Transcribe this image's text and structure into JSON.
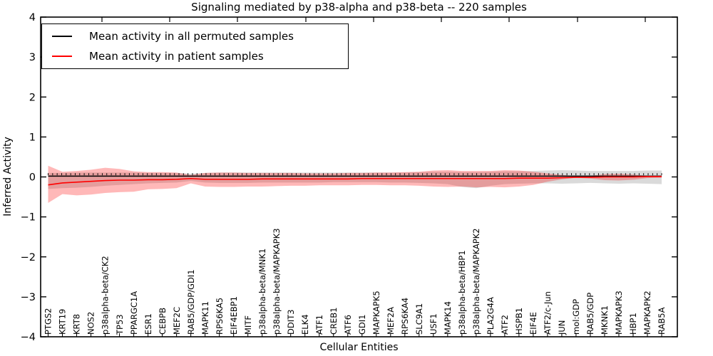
{
  "chart_data": {
    "type": "line",
    "title": "Signaling mediated by p38-alpha and p38-beta -- 220 samples",
    "xlabel": "Cellular Entities",
    "ylabel": "Inferred Activity",
    "ylim": [
      -4,
      4
    ],
    "yticks": {
      "values": [
        4,
        3,
        2,
        1,
        0,
        -1,
        -2,
        -3,
        -4
      ],
      "labels": [
        "4",
        "3",
        "2",
        "1",
        "0",
        "−1",
        "−2",
        "−3",
        "−4"
      ]
    },
    "grid": false,
    "legend": {
      "position": "upper left",
      "entries": [
        {
          "label": "Mean activity in all permuted samples",
          "color": "#000000"
        },
        {
          "label": "Mean activity in patient samples",
          "color": "#ff0000"
        }
      ]
    },
    "categories": [
      "PTGS2",
      "KRT19",
      "KRT8",
      "NOS2",
      "p38alpha-beta/CK2",
      "TP53",
      "PPARGC1A",
      "ESR1",
      "CEBPB",
      "MEF2C",
      "RAB5/GDP/GDI1",
      "MAPK11",
      "RPS6KA5",
      "EIF4EBP1",
      "MITF",
      "p38alpha-beta/MNK1",
      "p38alpha-beta/MAPKAPK3",
      "DDIT3",
      "ELK4",
      "ATF1",
      "CREB1",
      "ATF6",
      "GDI1",
      "MAPKAPK5",
      "MEF2A",
      "RPS6KA4",
      "SLC9A1",
      "USF1",
      "MAPK14",
      "p38alpha-beta/HBP1",
      "p38alpha-beta/MAPKAPK2",
      "PLA2G4A",
      "ATF2",
      "HSPB1",
      "EIF4E",
      "ATF2/c-Jun",
      "JUN",
      "mol:GDP",
      "RAB5/GDP",
      "MKNK1",
      "MAPKAPK3",
      "HBP1",
      "MAPKAPK2",
      "RAB5A"
    ],
    "series": [
      {
        "name": "Mean activity in all permuted samples",
        "color": "#000000",
        "values": [
          0.02,
          0.02,
          0.02,
          0.02,
          0.02,
          0.02,
          0.02,
          0.02,
          0.02,
          0.02,
          0.02,
          0.02,
          0.02,
          0.02,
          0.02,
          0.02,
          0.02,
          0.02,
          0.02,
          0.02,
          0.02,
          0.02,
          0.02,
          0.02,
          0.02,
          0.02,
          0.02,
          0.02,
          0.02,
          0.02,
          0.02,
          0.02,
          0.02,
          0.02,
          0.02,
          0.02,
          0.02,
          0.02,
          0.02,
          0.02,
          0.02,
          0.02,
          0.02,
          0.02
        ],
        "band_upper": [
          0.1,
          0.1,
          0.11,
          0.11,
          0.11,
          0.11,
          0.11,
          0.1,
          0.1,
          0.1,
          0.08,
          0.1,
          0.11,
          0.11,
          0.11,
          0.11,
          0.11,
          0.11,
          0.11,
          0.11,
          0.11,
          0.11,
          0.11,
          0.11,
          0.11,
          0.11,
          0.12,
          0.13,
          0.13,
          0.12,
          0.12,
          0.13,
          0.14,
          0.14,
          0.15,
          0.16,
          0.17,
          0.16,
          0.15,
          0.15,
          0.15,
          0.15,
          0.16,
          0.16
        ],
        "band_lower": [
          -0.3,
          -0.28,
          -0.27,
          -0.25,
          -0.22,
          -0.2,
          -0.18,
          -0.16,
          -0.15,
          -0.14,
          -0.1,
          -0.14,
          -0.15,
          -0.15,
          -0.15,
          -0.14,
          -0.14,
          -0.14,
          -0.14,
          -0.14,
          -0.13,
          -0.13,
          -0.13,
          -0.13,
          -0.14,
          -0.14,
          -0.15,
          -0.16,
          -0.18,
          -0.25,
          -0.28,
          -0.22,
          -0.18,
          -0.17,
          -0.16,
          -0.16,
          -0.17,
          -0.16,
          -0.15,
          -0.16,
          -0.17,
          -0.16,
          -0.17,
          -0.18
        ],
        "band_fill": "rgba(150,150,150,0.35)"
      },
      {
        "name": "Mean activity in patient samples",
        "color": "#ff0000",
        "values": [
          -0.2,
          -0.15,
          -0.13,
          -0.11,
          -0.09,
          -0.08,
          -0.08,
          -0.07,
          -0.07,
          -0.06,
          -0.04,
          -0.06,
          -0.06,
          -0.06,
          -0.06,
          -0.05,
          -0.05,
          -0.05,
          -0.05,
          -0.05,
          -0.05,
          -0.05,
          -0.04,
          -0.04,
          -0.04,
          -0.04,
          -0.04,
          -0.04,
          -0.04,
          -0.04,
          -0.04,
          -0.04,
          -0.04,
          -0.03,
          -0.03,
          -0.03,
          -0.02,
          -0.01,
          -0.01,
          0.0,
          0.0,
          0.0,
          0.01,
          0.01
        ],
        "band_upper": [
          0.28,
          0.13,
          0.15,
          0.18,
          0.23,
          0.2,
          0.14,
          0.12,
          0.12,
          0.11,
          0.05,
          0.1,
          0.11,
          0.11,
          0.1,
          0.1,
          0.1,
          0.1,
          0.09,
          0.09,
          0.09,
          0.1,
          0.1,
          0.11,
          0.11,
          0.12,
          0.13,
          0.16,
          0.17,
          0.15,
          0.15,
          0.15,
          0.17,
          0.16,
          0.13,
          0.09,
          0.05,
          0.02,
          0.03,
          0.07,
          0.08,
          0.06,
          0.03,
          0.02
        ],
        "band_lower": [
          -0.65,
          -0.43,
          -0.46,
          -0.44,
          -0.4,
          -0.38,
          -0.37,
          -0.31,
          -0.3,
          -0.28,
          -0.16,
          -0.24,
          -0.25,
          -0.25,
          -0.24,
          -0.24,
          -0.23,
          -0.22,
          -0.22,
          -0.21,
          -0.21,
          -0.21,
          -0.2,
          -0.2,
          -0.21,
          -0.21,
          -0.22,
          -0.24,
          -0.25,
          -0.24,
          -0.26,
          -0.25,
          -0.26,
          -0.24,
          -0.2,
          -0.12,
          -0.06,
          -0.02,
          -0.04,
          -0.08,
          -0.09,
          -0.07,
          -0.03,
          -0.02
        ],
        "band_fill": "rgba(255,0,0,0.28)"
      }
    ],
    "colors": {
      "axis": "#000000",
      "background": "#ffffff"
    }
  }
}
